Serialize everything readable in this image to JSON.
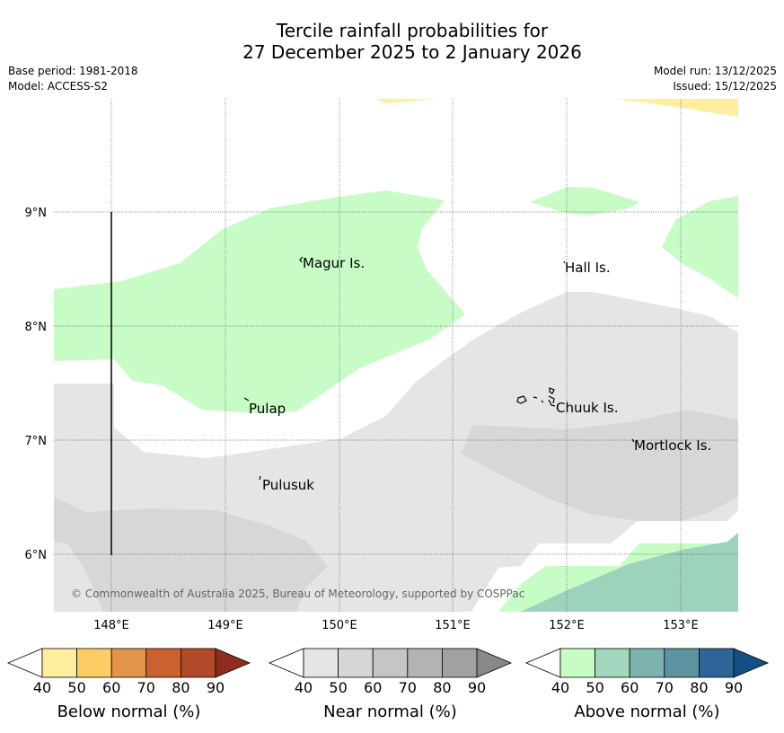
{
  "title": {
    "line1": "Tercile rainfall probabilities for",
    "line2": "27 December 2025 to 2 January 2026"
  },
  "meta": {
    "base_period": "Base period: 1981-2018",
    "model": "Model: ACCESS-S2",
    "model_run": "Model run: 13/12/2025",
    "issued": "Issued: 15/12/2025"
  },
  "map": {
    "lat_labels": [
      "9°N",
      "8°N",
      "7°N",
      "6°N"
    ],
    "lon_labels": [
      "148°E",
      "149°E",
      "150°E",
      "151°E",
      "152°E",
      "153°E"
    ],
    "places": [
      "Magur Is.",
      "Hall Is.",
      "Pulap",
      "Chuuk Is.",
      "Mortlock Is.",
      "Pulusuk"
    ],
    "copyright": "© Commonwealth of Australia 2025, Bureau of Meteorology, supported by COSPPac",
    "colors": {
      "below_40": "#ffeda0",
      "near_40": "#e5e5e5",
      "near_50": "#d7d7d7",
      "above_40": "#c7fcc7",
      "above_50": "#9dd3bc"
    }
  },
  "colorbars": [
    {
      "title": "Below normal (%)",
      "ticks": [
        "40",
        "50",
        "60",
        "70",
        "80",
        "90"
      ],
      "colors": [
        "#ffeda0",
        "#fecb64",
        "#e2944a",
        "#cd6030",
        "#b14a28",
        "#8e2c1d"
      ]
    },
    {
      "title": "Near normal (%)",
      "ticks": [
        "40",
        "50",
        "60",
        "70",
        "80",
        "90"
      ],
      "colors": [
        "#e5e5e5",
        "#d6d6d6",
        "#c5c5c5",
        "#b3b3b3",
        "#a1a1a1",
        "#888888"
      ]
    },
    {
      "title": "Above normal (%)",
      "ticks": [
        "40",
        "50",
        "60",
        "70",
        "80",
        "90"
      ],
      "colors": [
        "#c7fcc7",
        "#a2d7bd",
        "#7cb3ae",
        "#5c93a1",
        "#2f6498",
        "#154e82"
      ]
    }
  ]
}
